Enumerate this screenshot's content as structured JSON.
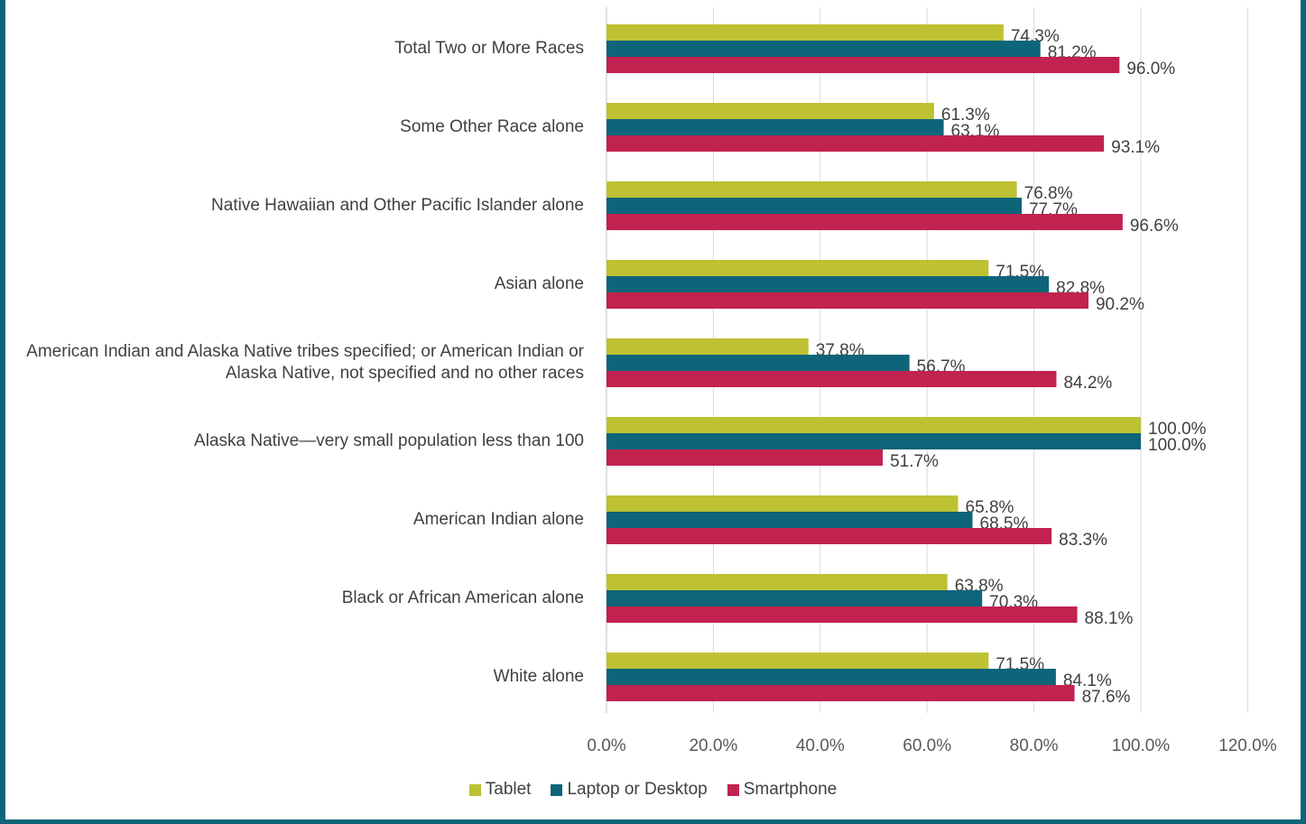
{
  "chart_data": {
    "type": "bar",
    "orientation": "horizontal",
    "categories": [
      "Total Two or More Races",
      "Some Other Race alone",
      "Native Hawaiian and Other Pacific Islander alone",
      "Asian alone",
      "American Indian and Alaska Native tribes specified; or American Indian or Alaska Native, not specified and no other races",
      "Alaska Native—very small population less than 100",
      "American Indian alone",
      "Black or African American alone",
      "White alone"
    ],
    "series": [
      {
        "name": "Tablet",
        "color": "#bec132",
        "values": [
          74.3,
          61.3,
          76.8,
          71.5,
          37.8,
          100.0,
          65.8,
          63.8,
          71.5
        ]
      },
      {
        "name": "Laptop or Desktop",
        "color": "#0e6479",
        "values": [
          81.2,
          63.1,
          77.7,
          82.8,
          56.7,
          100.0,
          68.5,
          70.3,
          84.1
        ]
      },
      {
        "name": "Smartphone",
        "color": "#c1224f",
        "values": [
          96.0,
          93.1,
          96.6,
          90.2,
          84.2,
          51.7,
          83.3,
          88.1,
          87.6
        ]
      }
    ],
    "xlim": [
      0,
      120
    ],
    "xticks": [
      "0.0%",
      "20.0%",
      "40.0%",
      "60.0%",
      "80.0%",
      "100.0%",
      "120.0%"
    ],
    "grid": true,
    "legend": "bottom"
  }
}
